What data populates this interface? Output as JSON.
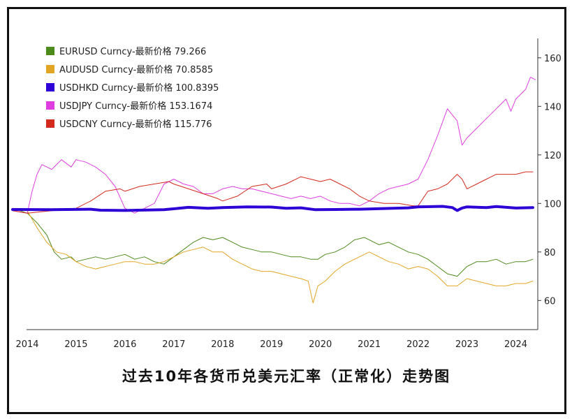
{
  "chart_data": {
    "type": "line",
    "title": "过去10年各货币兑美元汇率（正常化）走势图",
    "x_ticks": [
      "2014",
      "2015",
      "2016",
      "2017",
      "2018",
      "2019",
      "2020",
      "2021",
      "2022",
      "2023",
      "2024"
    ],
    "xlim": [
      2013.7,
      2024.45
    ],
    "ylim": [
      48,
      168
    ],
    "y_ticks": [
      60,
      80,
      100,
      120,
      140,
      160
    ],
    "legend_position": "top-left",
    "series": [
      {
        "name": "EURUSD Curncy",
        "label": "EURUSD Curncy-最新价格 79.266",
        "color": "#4d8a1c",
        "width": 1,
        "points": [
          [
            2013.7,
            98
          ],
          [
            2014.0,
            96
          ],
          [
            2014.2,
            92
          ],
          [
            2014.4,
            87
          ],
          [
            2014.55,
            80
          ],
          [
            2014.7,
            77
          ],
          [
            2014.9,
            78
          ],
          [
            2015.0,
            76
          ],
          [
            2015.2,
            77
          ],
          [
            2015.4,
            78
          ],
          [
            2015.6,
            77
          ],
          [
            2015.8,
            78
          ],
          [
            2016.0,
            79
          ],
          [
            2016.2,
            77
          ],
          [
            2016.4,
            78
          ],
          [
            2016.6,
            76
          ],
          [
            2016.8,
            75
          ],
          [
            2017.0,
            78
          ],
          [
            2017.2,
            81
          ],
          [
            2017.4,
            84
          ],
          [
            2017.6,
            86
          ],
          [
            2017.8,
            85
          ],
          [
            2018.0,
            86
          ],
          [
            2018.2,
            84
          ],
          [
            2018.4,
            82
          ],
          [
            2018.6,
            81
          ],
          [
            2018.8,
            80
          ],
          [
            2019.0,
            80
          ],
          [
            2019.2,
            79
          ],
          [
            2019.4,
            78
          ],
          [
            2019.6,
            78
          ],
          [
            2019.8,
            77
          ],
          [
            2019.95,
            77
          ],
          [
            2020.1,
            79
          ],
          [
            2020.3,
            80
          ],
          [
            2020.5,
            82
          ],
          [
            2020.7,
            85
          ],
          [
            2020.9,
            86
          ],
          [
            2021.0,
            85
          ],
          [
            2021.2,
            83
          ],
          [
            2021.4,
            84
          ],
          [
            2021.6,
            82
          ],
          [
            2021.8,
            80
          ],
          [
            2022.0,
            79
          ],
          [
            2022.2,
            77
          ],
          [
            2022.4,
            74
          ],
          [
            2022.6,
            71
          ],
          [
            2022.8,
            70
          ],
          [
            2023.0,
            74
          ],
          [
            2023.2,
            76
          ],
          [
            2023.4,
            76
          ],
          [
            2023.6,
            77
          ],
          [
            2023.8,
            75
          ],
          [
            2024.0,
            76
          ],
          [
            2024.2,
            76
          ],
          [
            2024.35,
            77
          ]
        ]
      },
      {
        "name": "AUDUSD Curncy",
        "label": "AUDUSD Curncy-最新价格 70.8585",
        "color": "#e2a625",
        "width": 1,
        "points": [
          [
            2013.7,
            98
          ],
          [
            2014.0,
            97
          ],
          [
            2014.2,
            90
          ],
          [
            2014.4,
            84
          ],
          [
            2014.6,
            80
          ],
          [
            2014.8,
            79
          ],
          [
            2015.0,
            76
          ],
          [
            2015.2,
            74
          ],
          [
            2015.4,
            73
          ],
          [
            2015.6,
            74
          ],
          [
            2015.8,
            75
          ],
          [
            2016.0,
            76
          ],
          [
            2016.2,
            76
          ],
          [
            2016.4,
            75
          ],
          [
            2016.6,
            75
          ],
          [
            2016.8,
            76
          ],
          [
            2017.0,
            78
          ],
          [
            2017.2,
            80
          ],
          [
            2017.4,
            81
          ],
          [
            2017.6,
            82
          ],
          [
            2017.8,
            80
          ],
          [
            2018.0,
            80
          ],
          [
            2018.2,
            77
          ],
          [
            2018.4,
            75
          ],
          [
            2018.6,
            73
          ],
          [
            2018.8,
            72
          ],
          [
            2019.0,
            72
          ],
          [
            2019.2,
            71
          ],
          [
            2019.4,
            70
          ],
          [
            2019.6,
            69
          ],
          [
            2019.75,
            68
          ],
          [
            2019.85,
            59
          ],
          [
            2019.95,
            66
          ],
          [
            2020.1,
            68
          ],
          [
            2020.3,
            72
          ],
          [
            2020.5,
            75
          ],
          [
            2020.7,
            77
          ],
          [
            2020.9,
            79
          ],
          [
            2021.0,
            80
          ],
          [
            2021.2,
            78
          ],
          [
            2021.4,
            76
          ],
          [
            2021.6,
            75
          ],
          [
            2021.8,
            73
          ],
          [
            2022.0,
            74
          ],
          [
            2022.2,
            73
          ],
          [
            2022.4,
            70
          ],
          [
            2022.6,
            66
          ],
          [
            2022.8,
            66
          ],
          [
            2023.0,
            69
          ],
          [
            2023.2,
            68
          ],
          [
            2023.4,
            67
          ],
          [
            2023.6,
            66
          ],
          [
            2023.8,
            66
          ],
          [
            2024.0,
            67
          ],
          [
            2024.2,
            67
          ],
          [
            2024.35,
            68
          ]
        ]
      },
      {
        "name": "USDHKD Curncy",
        "label": "USDHKD Curncy-最新价格 100.8395",
        "color": "#2d00d6",
        "width": 4,
        "points": [
          [
            2013.7,
            97.5
          ],
          [
            2014.5,
            97.4
          ],
          [
            2015.3,
            97.6
          ],
          [
            2015.5,
            97.2
          ],
          [
            2016.0,
            97.1
          ],
          [
            2016.8,
            97.4
          ],
          [
            2017.3,
            98.4
          ],
          [
            2017.7,
            98.0
          ],
          [
            2018.0,
            98.3
          ],
          [
            2018.5,
            98.6
          ],
          [
            2019.0,
            98.5
          ],
          [
            2019.3,
            98.0
          ],
          [
            2019.6,
            98.2
          ],
          [
            2019.9,
            97.4
          ],
          [
            2020.3,
            97.5
          ],
          [
            2020.8,
            97.6
          ],
          [
            2021.3,
            97.9
          ],
          [
            2021.8,
            98.2
          ],
          [
            2022.0,
            98.6
          ],
          [
            2022.5,
            98.8
          ],
          [
            2022.7,
            98.3
          ],
          [
            2022.8,
            97.1
          ],
          [
            2022.9,
            98.1
          ],
          [
            2023.0,
            98.6
          ],
          [
            2023.4,
            98.3
          ],
          [
            2023.6,
            98.7
          ],
          [
            2024.0,
            98.1
          ],
          [
            2024.35,
            98.3
          ]
        ]
      },
      {
        "name": "USDJPY Curncy",
        "label": "USDJPY Curncy-最新价格 153.1674",
        "color": "#e03de0",
        "width": 1,
        "points": [
          [
            2013.7,
            97
          ],
          [
            2014.0,
            96
          ],
          [
            2014.1,
            105
          ],
          [
            2014.2,
            112
          ],
          [
            2014.3,
            116
          ],
          [
            2014.5,
            114
          ],
          [
            2014.7,
            118
          ],
          [
            2014.9,
            115
          ],
          [
            2015.0,
            118
          ],
          [
            2015.2,
            117
          ],
          [
            2015.4,
            115
          ],
          [
            2015.6,
            112
          ],
          [
            2015.8,
            107
          ],
          [
            2016.0,
            98
          ],
          [
            2016.2,
            96
          ],
          [
            2016.4,
            98
          ],
          [
            2016.6,
            100
          ],
          [
            2016.8,
            108
          ],
          [
            2017.0,
            110
          ],
          [
            2017.2,
            108
          ],
          [
            2017.4,
            107
          ],
          [
            2017.6,
            104
          ],
          [
            2017.8,
            104
          ],
          [
            2018.0,
            106
          ],
          [
            2018.2,
            107
          ],
          [
            2018.4,
            106
          ],
          [
            2018.6,
            106
          ],
          [
            2018.8,
            105
          ],
          [
            2019.0,
            104
          ],
          [
            2019.2,
            103
          ],
          [
            2019.4,
            102
          ],
          [
            2019.6,
            103
          ],
          [
            2019.8,
            102
          ],
          [
            2020.0,
            103
          ],
          [
            2020.2,
            101
          ],
          [
            2020.4,
            100
          ],
          [
            2020.6,
            100
          ],
          [
            2020.8,
            99
          ],
          [
            2021.0,
            101
          ],
          [
            2021.2,
            104
          ],
          [
            2021.4,
            106
          ],
          [
            2021.6,
            107
          ],
          [
            2021.8,
            108
          ],
          [
            2022.0,
            110
          ],
          [
            2022.2,
            118
          ],
          [
            2022.4,
            128
          ],
          [
            2022.6,
            139
          ],
          [
            2022.8,
            134
          ],
          [
            2022.9,
            124
          ],
          [
            2023.0,
            127
          ],
          [
            2023.2,
            131
          ],
          [
            2023.4,
            135
          ],
          [
            2023.6,
            139
          ],
          [
            2023.8,
            143
          ],
          [
            2023.9,
            138
          ],
          [
            2024.0,
            143
          ],
          [
            2024.2,
            147
          ],
          [
            2024.3,
            152
          ],
          [
            2024.4,
            151
          ]
        ]
      },
      {
        "name": "USDCNY Curncy",
        "label": "USDCNY Curncy-最新价格 115.776",
        "color": "#d42a1e",
        "width": 1,
        "points": [
          [
            2013.7,
            97
          ],
          [
            2014.0,
            96
          ],
          [
            2014.5,
            97
          ],
          [
            2015.0,
            98
          ],
          [
            2015.3,
            101
          ],
          [
            2015.6,
            105
          ],
          [
            2015.9,
            106
          ],
          [
            2016.0,
            105
          ],
          [
            2016.3,
            107
          ],
          [
            2016.6,
            108
          ],
          [
            2016.9,
            109
          ],
          [
            2017.0,
            108
          ],
          [
            2017.3,
            106
          ],
          [
            2017.6,
            104
          ],
          [
            2017.9,
            102
          ],
          [
            2018.0,
            101
          ],
          [
            2018.3,
            103
          ],
          [
            2018.6,
            107
          ],
          [
            2018.9,
            108
          ],
          [
            2019.0,
            106
          ],
          [
            2019.3,
            108
          ],
          [
            2019.6,
            111
          ],
          [
            2019.8,
            110
          ],
          [
            2020.0,
            109
          ],
          [
            2020.2,
            110
          ],
          [
            2020.4,
            108
          ],
          [
            2020.6,
            106
          ],
          [
            2020.8,
            103
          ],
          [
            2021.0,
            101
          ],
          [
            2021.3,
            100
          ],
          [
            2021.6,
            100
          ],
          [
            2021.9,
            99
          ],
          [
            2022.0,
            99
          ],
          [
            2022.2,
            105
          ],
          [
            2022.4,
            106
          ],
          [
            2022.6,
            108
          ],
          [
            2022.8,
            112
          ],
          [
            2022.9,
            110
          ],
          [
            2023.0,
            106
          ],
          [
            2023.2,
            108
          ],
          [
            2023.4,
            110
          ],
          [
            2023.6,
            112
          ],
          [
            2023.8,
            112
          ],
          [
            2024.0,
            112
          ],
          [
            2024.2,
            113
          ],
          [
            2024.35,
            113
          ]
        ]
      }
    ]
  }
}
